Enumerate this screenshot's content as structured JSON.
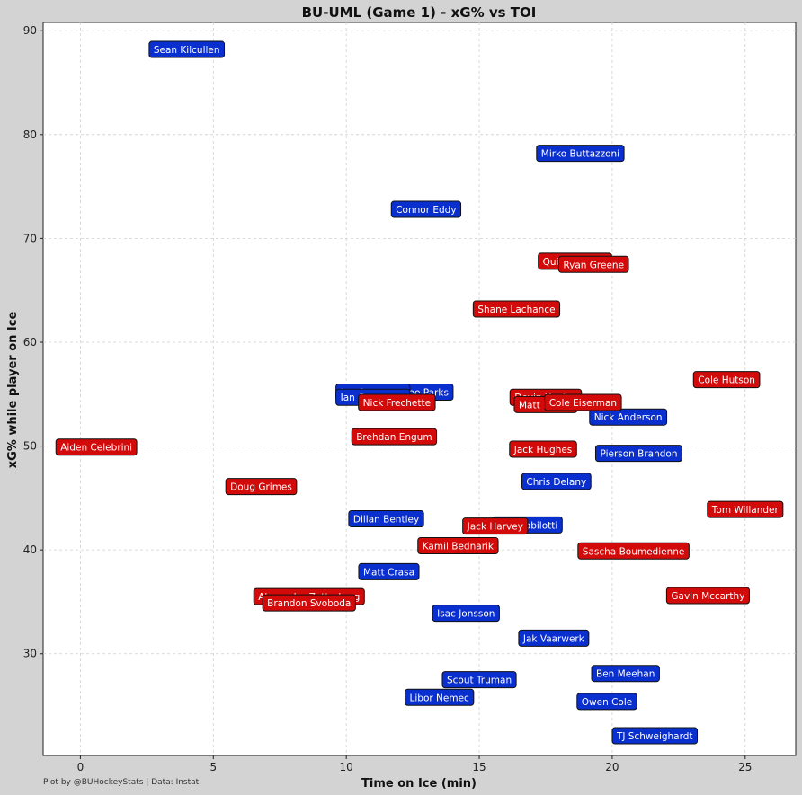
{
  "page": {
    "credit": "Plot by @BUHockeyStats | Data: Instat"
  },
  "colors": {
    "BU": "#0a2fcf",
    "UML": "#d20a0a",
    "background": "#d3d3d3",
    "plot_area": "#ffffff"
  },
  "chart_data": {
    "type": "scatter",
    "title": "BU-UML (Game 1) - xG% vs TOI",
    "xlabel": "Time on Ice (min)",
    "ylabel": "xG% while player on Ice",
    "xlim": [
      -1.4,
      26.9
    ],
    "ylim": [
      20.2,
      90.8
    ],
    "xticks": [
      0,
      5,
      10,
      15,
      20,
      25
    ],
    "yticks": [
      30,
      40,
      50,
      60,
      70,
      80,
      90
    ],
    "grid": true,
    "series": [
      {
        "team": "BU",
        "points": [
          {
            "name": "Sean Kilcullen",
            "x": 4.0,
            "y": 88.2
          },
          {
            "name": "Mirko Buttazzoni",
            "x": 18.8,
            "y": 78.2
          },
          {
            "name": "Connor Eddy",
            "x": 13.0,
            "y": 72.8
          },
          {
            "name": "Lee Parks",
            "x": 13.0,
            "y": 55.2
          },
          {
            "name": "Ian Carpenter",
            "x": 11.0,
            "y": 55.2
          },
          {
            "name": "Ian Carpenter",
            "x": 11.0,
            "y": 54.7
          },
          {
            "name": "Nick Anderson",
            "x": 20.6,
            "y": 52.8
          },
          {
            "name": "Pierson Brandon",
            "x": 21.0,
            "y": 49.3
          },
          {
            "name": "Chris Delany",
            "x": 17.9,
            "y": 46.6
          },
          {
            "name": "Dillan Bentley",
            "x": 11.5,
            "y": 43.0
          },
          {
            "name": "Jack Robilotti",
            "x": 16.8,
            "y": 42.4
          },
          {
            "name": "Matt Crasa",
            "x": 11.6,
            "y": 37.9
          },
          {
            "name": "Isac Jonsson",
            "x": 14.5,
            "y": 33.9
          },
          {
            "name": "Jak Vaarwerk",
            "x": 17.8,
            "y": 31.5
          },
          {
            "name": "Ben Meehan",
            "x": 20.5,
            "y": 28.1
          },
          {
            "name": "Scout Truman",
            "x": 15.0,
            "y": 27.5
          },
          {
            "name": "Owen Cole",
            "x": 19.8,
            "y": 25.4
          },
          {
            "name": "Libor Nemec",
            "x": 13.5,
            "y": 25.8
          },
          {
            "name": "TJ Schweighardt",
            "x": 21.6,
            "y": 22.1
          }
        ]
      },
      {
        "team": "UML",
        "points": [
          {
            "name": "Quinn Hutson",
            "x": 18.6,
            "y": 67.8
          },
          {
            "name": "Ryan Greene",
            "x": 19.3,
            "y": 67.5
          },
          {
            "name": "Shane Lachance",
            "x": 16.4,
            "y": 63.2
          },
          {
            "name": "Cole Hutson",
            "x": 24.3,
            "y": 56.4
          },
          {
            "name": "Nick Frechette",
            "x": 11.9,
            "y": 54.2
          },
          {
            "name": "Devin Kaplan",
            "x": 17.5,
            "y": 54.7
          },
          {
            "name": "Matt Brown",
            "x": 17.5,
            "y": 54.0
          },
          {
            "name": "Cole Eiserman",
            "x": 18.9,
            "y": 54.2
          },
          {
            "name": "Aiden Celebrini",
            "x": 0.6,
            "y": 49.9
          },
          {
            "name": "Brehdan Engum",
            "x": 11.8,
            "y": 50.9
          },
          {
            "name": "Jack Hughes",
            "x": 17.4,
            "y": 49.7
          },
          {
            "name": "Doug Grimes",
            "x": 6.8,
            "y": 46.1
          },
          {
            "name": "Tom Willander",
            "x": 25.0,
            "y": 43.9
          },
          {
            "name": "Jack Harvey",
            "x": 15.6,
            "y": 42.3
          },
          {
            "name": "Kamil Bednarik",
            "x": 14.2,
            "y": 40.4
          },
          {
            "name": "Sascha Boumedienne",
            "x": 20.8,
            "y": 39.9
          },
          {
            "name": "Alexander Zetterberg",
            "x": 8.6,
            "y": 35.5
          },
          {
            "name": "Brandon Svoboda",
            "x": 8.6,
            "y": 34.9
          },
          {
            "name": "Gavin Mccarthy",
            "x": 23.6,
            "y": 35.6
          }
        ]
      }
    ]
  }
}
